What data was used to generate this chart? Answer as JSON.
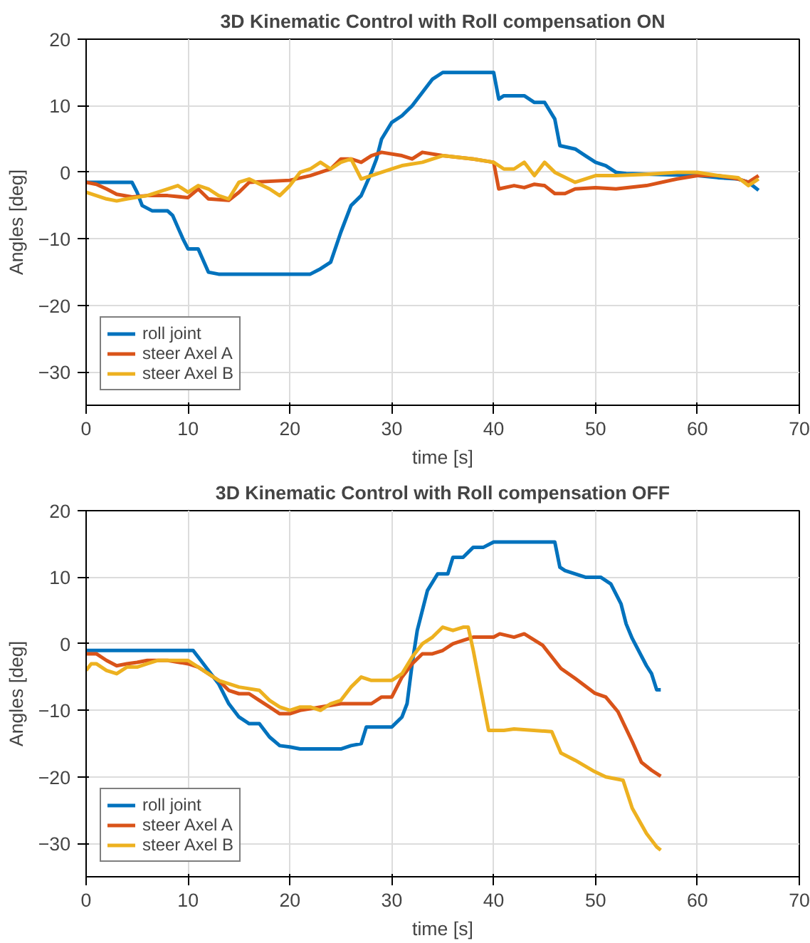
{
  "chart_data": [
    {
      "type": "line",
      "title": "3D Kinematic Control with Roll compensation ON",
      "xlabel": "time [s]",
      "ylabel": "Angles [deg]",
      "xlim": [
        0,
        70
      ],
      "ylim": [
        -35,
        20
      ],
      "xticks": [
        0,
        10,
        20,
        30,
        40,
        50,
        60,
        70
      ],
      "yticks": [
        -30,
        -20,
        -10,
        0,
        10,
        20
      ],
      "grid": true,
      "legend": "bottom left",
      "line_style": "solid",
      "series": [
        {
          "name": "roll joint",
          "color": "#0072bd",
          "x": [
            0,
            4.5,
            5,
            5.5,
            6.5,
            8,
            8.5,
            9.5,
            10,
            11,
            12,
            13,
            22,
            23,
            24,
            25,
            26,
            27,
            28,
            28.5,
            29,
            30,
            31,
            32,
            33,
            34,
            35,
            40,
            40.5,
            41,
            43,
            44,
            45,
            46,
            46.5,
            48,
            49,
            50,
            51,
            52,
            53,
            60,
            62,
            64,
            65,
            66
          ],
          "values": [
            -1.5,
            -1.5,
            -3,
            -5,
            -5.8,
            -5.8,
            -6.5,
            -10,
            -11.5,
            -11.5,
            -15,
            -15.3,
            -15.3,
            -14.5,
            -13.5,
            -9,
            -5,
            -3.5,
            0,
            2,
            5,
            7.5,
            8.5,
            10,
            12,
            14,
            15,
            15,
            11,
            11.5,
            11.5,
            10.5,
            10.5,
            8,
            4,
            3.5,
            2.5,
            1.5,
            1,
            0,
            -0.2,
            -0.5,
            -0.8,
            -1,
            -1.5,
            -2.7
          ]
        },
        {
          "name": "steer Axel A",
          "color": "#d95319",
          "x": [
            0,
            1,
            2,
            3,
            4.5,
            6,
            8,
            10,
            11,
            12,
            14,
            15,
            16,
            20,
            22,
            24,
            25,
            26,
            27,
            28,
            29,
            31,
            32,
            33,
            35,
            38,
            40,
            40.5,
            42,
            43,
            44,
            45,
            46,
            47,
            48,
            50,
            52,
            55,
            58,
            60,
            62,
            64,
            65,
            66
          ],
          "values": [
            -1.5,
            -1.8,
            -2.5,
            -3.3,
            -3.7,
            -3.5,
            -3.5,
            -3.8,
            -2.5,
            -4,
            -4.2,
            -3,
            -1.5,
            -1.2,
            -0.5,
            0.5,
            2,
            2,
            1.5,
            2.5,
            3,
            2.5,
            2,
            3,
            2.5,
            2,
            1.5,
            -2.5,
            -2,
            -2.3,
            -1.8,
            -2,
            -3.2,
            -3.2,
            -2.5,
            -2.3,
            -2.5,
            -2,
            -1,
            -0.5,
            -0.5,
            -1,
            -1.5,
            -0.5
          ]
        },
        {
          "name": "steer Axel B",
          "color": "#edb120",
          "x": [
            0,
            1,
            2,
            3,
            4,
            6,
            8,
            9,
            10,
            11,
            12,
            13,
            14,
            15,
            16,
            18,
            19,
            20,
            21,
            22,
            23,
            24,
            25,
            26,
            27,
            28,
            29,
            30,
            31,
            33,
            35,
            38,
            40,
            41,
            42,
            43,
            44,
            45,
            46,
            48,
            50,
            52,
            55,
            58,
            60,
            62,
            64,
            65,
            66
          ],
          "values": [
            -3,
            -3.5,
            -4,
            -4.3,
            -4,
            -3.5,
            -2.5,
            -2,
            -3,
            -2,
            -2.5,
            -3.5,
            -4,
            -1.5,
            -1,
            -2.5,
            -3.5,
            -2,
            0,
            0.5,
            1.5,
            0.5,
            1.5,
            2,
            -1,
            -0.5,
            0,
            0.5,
            1,
            1.5,
            2.5,
            2,
            1.5,
            0.5,
            0.5,
            1.5,
            -0.5,
            1.5,
            0,
            -1.5,
            -0.5,
            -0.5,
            -0.3,
            0,
            0,
            -0.5,
            -0.8,
            -2,
            -1
          ]
        }
      ]
    },
    {
      "type": "line",
      "title": "3D Kinematic Control with Roll compensation OFF",
      "xlabel": "time [s]",
      "ylabel": "Angles [deg]",
      "xlim": [
        0,
        70
      ],
      "ylim": [
        -35,
        20
      ],
      "xticks": [
        0,
        10,
        20,
        30,
        40,
        50,
        60,
        70
      ],
      "yticks": [
        -30,
        -20,
        -10,
        0,
        10,
        20
      ],
      "grid": true,
      "legend": "bottom left",
      "line_style": "solid",
      "series": [
        {
          "name": "roll joint",
          "color": "#0072bd",
          "x": [
            0,
            10.5,
            11,
            12,
            13,
            14,
            15,
            16,
            17,
            18,
            19,
            20,
            21,
            25,
            26,
            27,
            27.5,
            30,
            31,
            31.5,
            32,
            32.5,
            33,
            33.5,
            34.5,
            35.5,
            36,
            37,
            38,
            39,
            40,
            46,
            46.5,
            47,
            49,
            50.5,
            51.5,
            52.5,
            53,
            53.6,
            55,
            55.5,
            56,
            56.4
          ],
          "values": [
            -1,
            -1,
            -2,
            -4,
            -6,
            -9,
            -11,
            -12,
            -12,
            -14,
            -15.3,
            -15.5,
            -15.8,
            -15.8,
            -15.3,
            -15,
            -12.5,
            -12.5,
            -11,
            -9,
            -3,
            2,
            5,
            8,
            10.5,
            10.5,
            13,
            13,
            14.5,
            14.5,
            15.3,
            15.3,
            11.5,
            11,
            10,
            10,
            9,
            6,
            3,
            0.8,
            -3.3,
            -4.5,
            -6.9,
            -6.9
          ]
        },
        {
          "name": "steer Axel A",
          "color": "#d95319",
          "x": [
            0,
            1,
            2,
            3,
            4,
            5,
            6,
            8,
            10,
            11,
            12,
            13,
            14,
            15,
            16,
            17,
            18,
            19,
            20,
            21,
            23,
            25,
            28,
            29,
            30,
            31,
            32,
            33,
            34,
            35,
            36,
            37,
            38,
            40,
            40.6,
            42,
            43,
            44.8,
            46.6,
            48,
            49.9,
            51,
            52.2,
            53.6,
            54.5,
            55.5,
            56.4
          ],
          "values": [
            -1.5,
            -1.5,
            -2.5,
            -3.3,
            -3,
            -2.8,
            -2.5,
            -2.5,
            -3,
            -3.5,
            -4.5,
            -5.5,
            -7,
            -7.5,
            -7.5,
            -8.5,
            -9.5,
            -10.5,
            -10.5,
            -10,
            -9.5,
            -9,
            -9,
            -8,
            -8,
            -5,
            -3,
            -1.5,
            -1.5,
            -1,
            0,
            0.5,
            1,
            1,
            1.5,
            1,
            1.5,
            -0.2,
            -3.7,
            -5.2,
            -7.4,
            -8,
            -10.2,
            -14.7,
            -17.8,
            -19,
            -19.9
          ]
        },
        {
          "name": "steer Axel B",
          "color": "#edb120",
          "x": [
            0,
            0.5,
            1,
            2,
            3,
            4,
            5,
            6,
            7,
            9,
            10,
            11,
            12,
            13,
            15,
            17,
            18,
            19,
            20,
            21,
            22,
            23,
            24,
            25,
            26,
            27,
            28,
            30,
            31,
            32,
            33,
            34,
            35,
            36,
            37,
            37.5,
            38,
            38.5,
            39,
            39.5,
            41,
            42,
            45.7,
            46.6,
            48,
            49.9,
            51,
            52.7,
            53.6,
            55,
            56,
            56.4
          ],
          "values": [
            -4,
            -3,
            -3,
            -4,
            -4.5,
            -3.5,
            -3.5,
            -3,
            -2.5,
            -2.5,
            -2.5,
            -3.5,
            -4.5,
            -5.5,
            -6.5,
            -7,
            -8.5,
            -9.5,
            -10,
            -9.5,
            -9.5,
            -10,
            -9,
            -8.5,
            -6.5,
            -5,
            -5.5,
            -5.5,
            -4.5,
            -2,
            0,
            1,
            2.5,
            2,
            2.5,
            2.5,
            -1,
            -5,
            -9,
            -13,
            -13,
            -12.8,
            -13.2,
            -16.4,
            -17.5,
            -19.2,
            -20,
            -20.5,
            -24.7,
            -28.5,
            -30.5,
            -31
          ]
        }
      ]
    }
  ]
}
